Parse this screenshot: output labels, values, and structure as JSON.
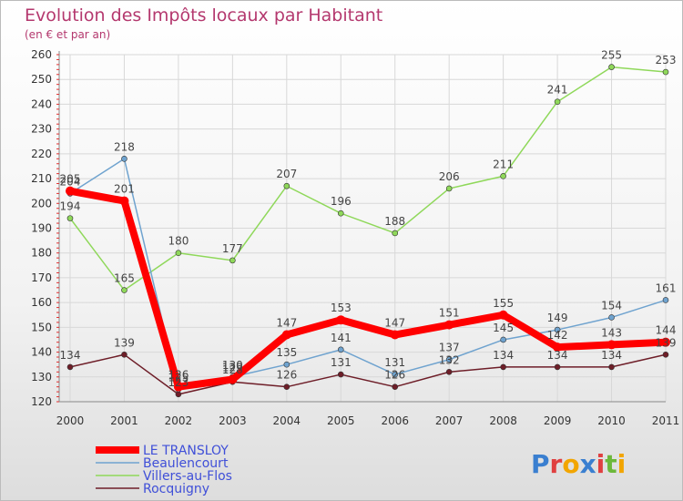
{
  "chart_data": {
    "type": "line",
    "title": "Evolution des Impôts locaux par Habitant",
    "subtitle": "(en € et par an)",
    "xlabel": "",
    "ylabel": "",
    "categories": [
      "2000",
      "2001",
      "2002",
      "2003",
      "2004",
      "2005",
      "2006",
      "2007",
      "2008",
      "2009",
      "2010",
      "2011"
    ],
    "ylim": [
      120,
      260
    ],
    "yticks": [
      120,
      130,
      140,
      150,
      160,
      170,
      180,
      190,
      200,
      210,
      220,
      230,
      240,
      250,
      260
    ],
    "grid": true,
    "legend_position": "bottom-left",
    "series": [
      {
        "name": "Rocquigny",
        "color": "#6e1e28",
        "width": 1.5,
        "values": [
          134,
          139,
          123,
          128,
          126,
          131,
          126,
          132,
          134,
          134,
          134,
          139
        ],
        "labels": [
          "134",
          "139",
          "123",
          "128",
          "126",
          "131",
          "126",
          "132",
          "134",
          "134",
          "134",
          "139"
        ]
      },
      {
        "name": "Villers-au-Flos",
        "color": "#8fd85a",
        "width": 1.5,
        "values": [
          194,
          165,
          180,
          177,
          207,
          196,
          188,
          206,
          211,
          241,
          255,
          253
        ],
        "labels": [
          "194",
          "165",
          "180",
          "177",
          "207",
          "196",
          "188",
          "206",
          "211",
          "241",
          "255",
          "253"
        ]
      },
      {
        "name": "Beaulencourt",
        "color": "#6fa3cf",
        "width": 1.5,
        "values": [
          204,
          218,
          125,
          130,
          135,
          141,
          131,
          137,
          145,
          149,
          154,
          161
        ],
        "labels": [
          "204",
          "218",
          "125",
          "130",
          "135",
          "141",
          "131",
          "137",
          "145",
          "149",
          "154",
          "161"
        ]
      },
      {
        "name": "LE TRANSLOY",
        "color": "#ff0000",
        "width": 8,
        "values": [
          205,
          201,
          126,
          129,
          147,
          153,
          147,
          151,
          155,
          142,
          143,
          144
        ],
        "labels": [
          "205",
          "201",
          "126",
          "129",
          "147",
          "153",
          "147",
          "151",
          "155",
          "142",
          "143",
          "144"
        ]
      }
    ],
    "legend_order": [
      "LE TRANSLOY",
      "Beaulencourt",
      "Villers-au-Flos",
      "Rocquigny"
    ]
  },
  "brand": {
    "name": "Proxiti",
    "letters": [
      "P",
      "r",
      "o",
      "x",
      "i",
      "t",
      "i"
    ],
    "colors": [
      "#3a7fd0",
      "#e04040",
      "#f2a500",
      "#3a7fd0",
      "#e04040",
      "#6cb83a",
      "#f2a500"
    ]
  }
}
